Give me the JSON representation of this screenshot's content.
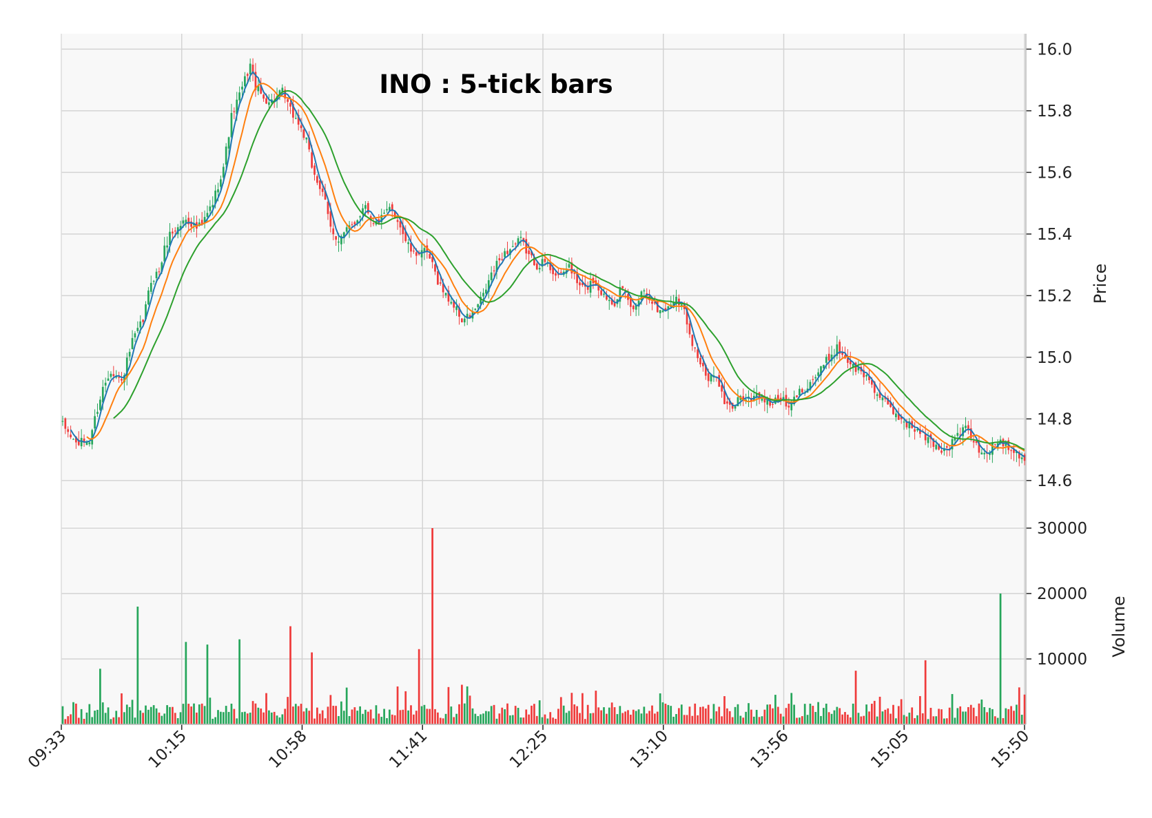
{
  "chart_data": {
    "type": "candlestick",
    "title": "INO : 5-tick bars",
    "price_axis": {
      "label": "Price",
      "ylim": [
        14.45,
        16.05
      ],
      "ticks": [
        "14.6",
        "14.8",
        "15.0",
        "15.2",
        "15.4",
        "15.6",
        "15.8",
        "16.0"
      ]
    },
    "volume_axis": {
      "label": "Volume",
      "ylim": [
        0,
        30000
      ],
      "ticks": [
        "10000",
        "20000",
        "30000"
      ]
    },
    "x_axis": {
      "labels": [
        "09:33",
        "10:15",
        "10:58",
        "11:41",
        "12:25",
        "13:10",
        "13:56",
        "15:05",
        "15:50"
      ],
      "n_bars": 360
    },
    "grid": true,
    "price_path": [
      [
        0,
        14.78
      ],
      [
        5,
        14.72
      ],
      [
        10,
        14.73
      ],
      [
        12,
        14.8
      ],
      [
        15,
        14.9
      ],
      [
        18,
        14.96
      ],
      [
        22,
        14.92
      ],
      [
        26,
        15.05
      ],
      [
        30,
        15.12
      ],
      [
        33,
        15.25
      ],
      [
        36,
        15.28
      ],
      [
        38,
        15.35
      ],
      [
        40,
        15.4
      ],
      [
        43,
        15.42
      ],
      [
        46,
        15.45
      ],
      [
        50,
        15.42
      ],
      [
        52,
        15.43
      ],
      [
        56,
        15.5
      ],
      [
        60,
        15.62
      ],
      [
        63,
        15.78
      ],
      [
        66,
        15.85
      ],
      [
        68,
        15.9
      ],
      [
        70,
        15.95
      ],
      [
        72,
        15.88
      ],
      [
        75,
        15.84
      ],
      [
        78,
        15.83
      ],
      [
        82,
        15.86
      ],
      [
        85,
        15.8
      ],
      [
        88,
        15.76
      ],
      [
        91,
        15.7
      ],
      [
        93,
        15.62
      ],
      [
        96,
        15.55
      ],
      [
        98,
        15.5
      ],
      [
        100,
        15.42
      ],
      [
        103,
        15.38
      ],
      [
        107,
        15.42
      ],
      [
        110,
        15.45
      ],
      [
        113,
        15.5
      ],
      [
        116,
        15.43
      ],
      [
        119,
        15.45
      ],
      [
        122,
        15.48
      ],
      [
        125,
        15.45
      ],
      [
        128,
        15.38
      ],
      [
        131,
        15.33
      ],
      [
        134,
        15.35
      ],
      [
        137,
        15.32
      ],
      [
        140,
        15.25
      ],
      [
        143,
        15.2
      ],
      [
        146,
        15.17
      ],
      [
        149,
        15.12
      ],
      [
        153,
        15.14
      ],
      [
        157,
        15.2
      ],
      [
        160,
        15.27
      ],
      [
        164,
        15.33
      ],
      [
        168,
        15.36
      ],
      [
        171,
        15.38
      ],
      [
        174,
        15.33
      ],
      [
        177,
        15.3
      ],
      [
        180,
        15.31
      ],
      [
        183,
        15.28
      ],
      [
        186,
        15.26
      ],
      [
        189,
        15.3
      ],
      [
        192,
        15.24
      ],
      [
        195,
        15.22
      ],
      [
        198,
        15.25
      ],
      [
        202,
        15.2
      ],
      [
        206,
        15.18
      ],
      [
        208,
        15.22
      ],
      [
        210,
        15.2
      ],
      [
        213,
        15.15
      ],
      [
        216,
        15.22
      ],
      [
        219,
        15.2
      ],
      [
        222,
        15.15
      ],
      [
        226,
        15.16
      ],
      [
        229,
        15.2
      ],
      [
        232,
        15.15
      ],
      [
        235,
        15.05
      ],
      [
        238,
        14.98
      ],
      [
        241,
        14.92
      ],
      [
        244,
        14.95
      ],
      [
        247,
        14.85
      ],
      [
        250,
        14.83
      ],
      [
        253,
        14.88
      ],
      [
        256,
        14.86
      ],
      [
        259,
        14.88
      ],
      [
        262,
        14.86
      ],
      [
        265,
        14.85
      ],
      [
        268,
        14.87
      ],
      [
        271,
        14.83
      ],
      [
        274,
        14.88
      ],
      [
        277,
        14.9
      ],
      [
        280,
        14.93
      ],
      [
        283,
        14.96
      ],
      [
        286,
        15.0
      ],
      [
        289,
        15.03
      ],
      [
        292,
        15.0
      ],
      [
        295,
        14.97
      ],
      [
        298,
        14.95
      ],
      [
        301,
        14.93
      ],
      [
        304,
        14.88
      ],
      [
        307,
        14.85
      ],
      [
        310,
        14.82
      ],
      [
        313,
        14.8
      ],
      [
        316,
        14.78
      ],
      [
        319,
        14.76
      ],
      [
        322,
        14.74
      ],
      [
        325,
        14.72
      ],
      [
        328,
        14.7
      ],
      [
        331,
        14.71
      ],
      [
        334,
        14.75
      ],
      [
        337,
        14.77
      ],
      [
        340,
        14.73
      ],
      [
        343,
        14.68
      ],
      [
        346,
        14.7
      ],
      [
        349,
        14.73
      ],
      [
        352,
        14.72
      ],
      [
        355,
        14.7
      ],
      [
        358,
        14.68
      ],
      [
        360,
        14.66
      ]
    ],
    "series": [
      {
        "color": "#1f77b4"
      },
      {
        "color": "#ff7f0e"
      },
      {
        "color": "#2ca02c"
      }
    ]
  },
  "colors": {
    "up": "#26a65b",
    "down": "#ef3b3b",
    "grid": "#d3d3d3",
    "panel": "#f8f8f8"
  }
}
